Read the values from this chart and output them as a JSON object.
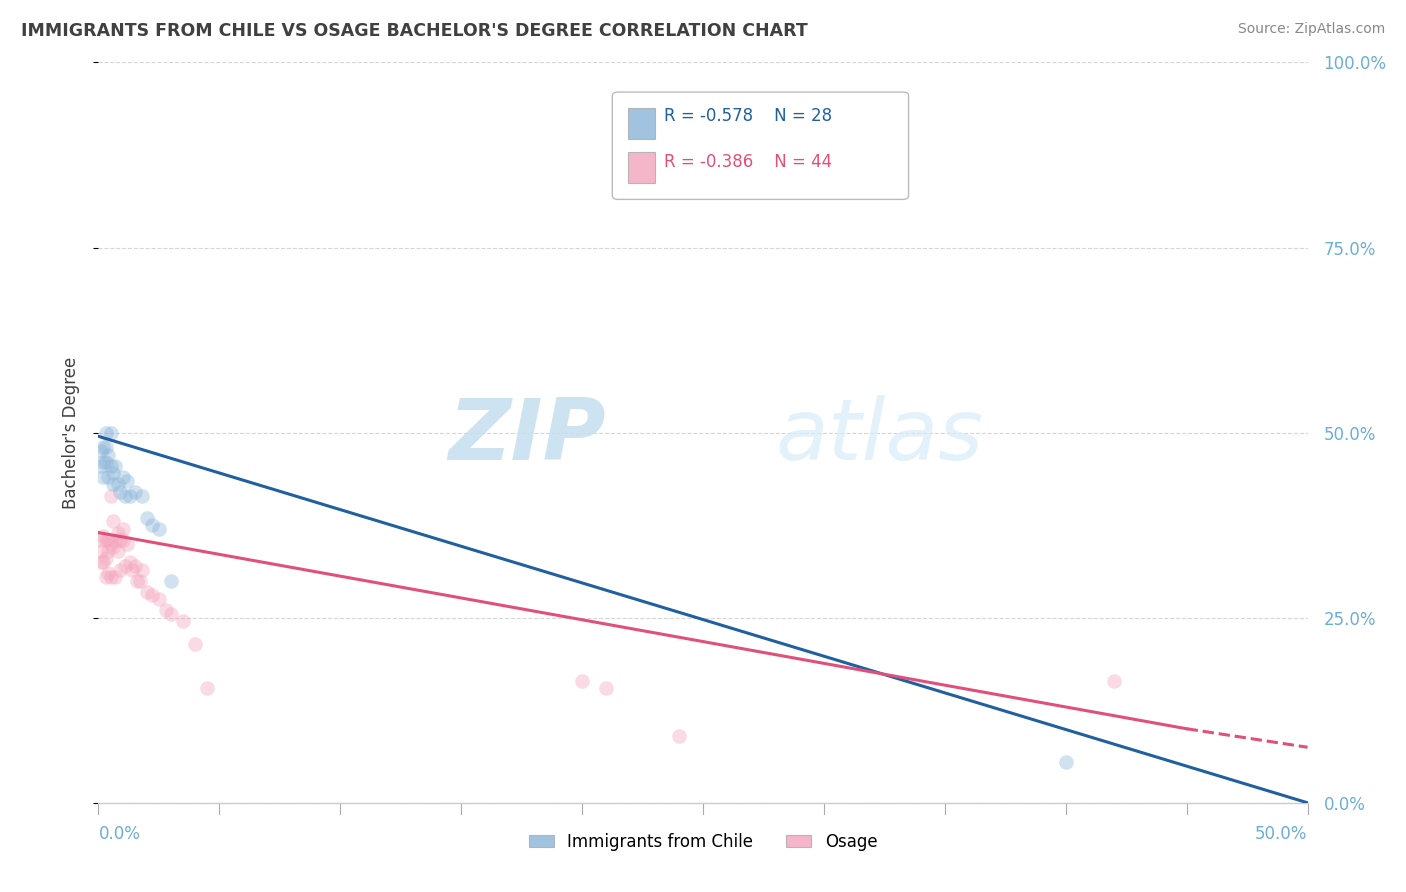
{
  "title": "IMMIGRANTS FROM CHILE VS OSAGE BACHELOR'S DEGREE CORRELATION CHART",
  "source": "Source: ZipAtlas.com",
  "ylabel": "Bachelor's Degree",
  "legend_blue_r": "R = -0.578",
  "legend_blue_n": "N = 28",
  "legend_pink_r": "R = -0.386",
  "legend_pink_n": "N = 44",
  "legend_blue_label": "Immigrants from Chile",
  "legend_pink_label": "Osage",
  "blue_color": "#8ab4d8",
  "pink_color": "#f4a4bc",
  "blue_line_color": "#2060a0",
  "pink_line_color": "#e0507a",
  "watermark_zip": "ZIP",
  "watermark_atlas": "atlas",
  "blue_x": [
    0.001,
    0.001,
    0.002,
    0.002,
    0.002,
    0.003,
    0.003,
    0.003,
    0.004,
    0.004,
    0.005,
    0.005,
    0.006,
    0.006,
    0.007,
    0.008,
    0.009,
    0.01,
    0.011,
    0.012,
    0.013,
    0.015,
    0.018,
    0.02,
    0.022,
    0.025,
    0.03,
    0.4
  ],
  "blue_y": [
    0.455,
    0.475,
    0.48,
    0.46,
    0.44,
    0.5,
    0.48,
    0.46,
    0.44,
    0.47,
    0.5,
    0.455,
    0.445,
    0.43,
    0.455,
    0.43,
    0.42,
    0.44,
    0.415,
    0.435,
    0.415,
    0.42,
    0.415,
    0.385,
    0.375,
    0.37,
    0.3,
    0.055
  ],
  "pink_x": [
    0.001,
    0.001,
    0.001,
    0.002,
    0.002,
    0.003,
    0.003,
    0.003,
    0.004,
    0.004,
    0.004,
    0.005,
    0.005,
    0.005,
    0.006,
    0.006,
    0.007,
    0.007,
    0.008,
    0.008,
    0.009,
    0.009,
    0.01,
    0.01,
    0.011,
    0.012,
    0.013,
    0.014,
    0.015,
    0.016,
    0.017,
    0.018,
    0.02,
    0.022,
    0.025,
    0.028,
    0.03,
    0.035,
    0.04,
    0.045,
    0.2,
    0.21,
    0.24,
    0.42
  ],
  "pink_y": [
    0.355,
    0.34,
    0.325,
    0.36,
    0.325,
    0.355,
    0.33,
    0.305,
    0.355,
    0.34,
    0.31,
    0.415,
    0.35,
    0.305,
    0.345,
    0.38,
    0.355,
    0.305,
    0.365,
    0.34,
    0.355,
    0.315,
    0.37,
    0.355,
    0.32,
    0.35,
    0.325,
    0.315,
    0.32,
    0.3,
    0.3,
    0.315,
    0.285,
    0.28,
    0.275,
    0.26,
    0.255,
    0.245,
    0.215,
    0.155,
    0.165,
    0.155,
    0.09,
    0.165
  ],
  "xmin": 0.0,
  "xmax": 0.5,
  "ymin": 0.0,
  "ymax": 1.0,
  "yticks": [
    0.0,
    0.25,
    0.5,
    0.75,
    1.0
  ],
  "ytick_labels": [
    "",
    "25.0%",
    "50.0%",
    "75.0%",
    "100.0%"
  ],
  "grid_color": "#cccccc",
  "background_color": "#ffffff",
  "title_color": "#404040",
  "source_color": "#888888",
  "axis_label_color": "#6baed6",
  "marker_size": 110,
  "marker_alpha": 0.4,
  "line_width": 2.2
}
